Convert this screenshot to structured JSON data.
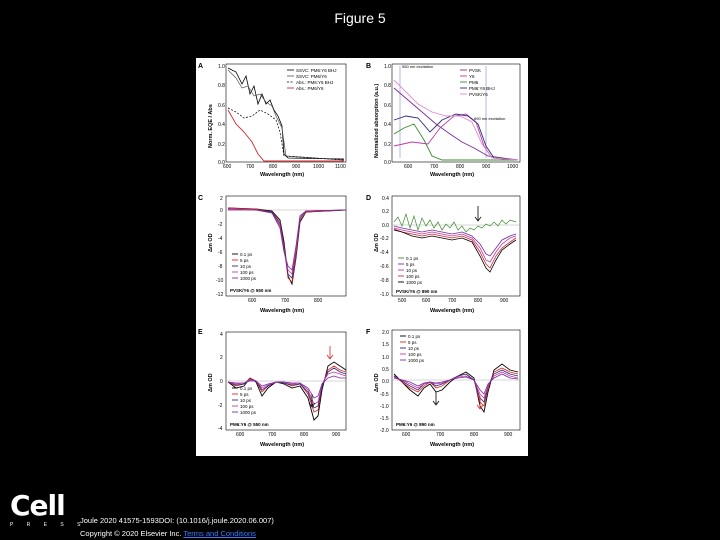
{
  "slide": {
    "title": "Figure 5"
  },
  "footer": {
    "logo_word": "Cell",
    "logo_sub": "P R E S S",
    "citation": "Joule 2020 41575-1593DOI: (10.1016/j.joule.2020.06.007)",
    "copyright": "Copyright © 2020 Elsevier Inc.",
    "terms_link": "Terms and Conditions"
  },
  "colors": {
    "black": "#000000",
    "red": "#d6262a",
    "purple": "#7b2b9e",
    "magenta": "#c03aa6",
    "navy": "#2d2a7a",
    "green": "#3d8b2f",
    "pink": "#e08ad0"
  },
  "panels": {
    "A": {
      "letter": "A",
      "xlabel": "Wavelength (nm)",
      "ylabel": "Norm. EQE / Abs",
      "xticks": [
        "600",
        "700",
        "800",
        "900",
        "1000",
        "1100"
      ],
      "yticks": [
        "1.0",
        "0.8",
        "0.6",
        "0.4",
        "0.2",
        "0.0"
      ],
      "legend": [
        "SSVC: PM6:Y6 BHJ",
        "SSVC: PM6/Y6",
        "Abs.: PM6:Y6 BHJ",
        "Abs.: PM6/Y6"
      ]
    },
    "B": {
      "letter": "B",
      "xlabel": "Wavelength (nm)",
      "ylabel": "Normalized absorption (a.u.)",
      "xticks": [
        "600",
        "700",
        "800",
        "900",
        "1000"
      ],
      "yticks": [
        "1.0",
        "0.8",
        "0.6",
        "0.4",
        "0.2",
        "0.0"
      ],
      "legend": [
        "PVSK",
        "Y6",
        "PM6",
        "PM6:Y6 BHJ",
        "PVSK/Y6"
      ],
      "note1": "550 nm excitation",
      "note2": "890 nm excitation"
    },
    "C": {
      "letter": "C",
      "xlabel": "Wavelength (nm)",
      "ylabel": "Δm OD",
      "xticks": [
        "600",
        "700",
        "800"
      ],
      "yticks": [
        "2",
        "0",
        "-2",
        "-4",
        "-6",
        "-8",
        "-10",
        "-12"
      ],
      "legend": [
        "0.1 ps",
        "5 ps",
        "10 ps",
        "100 ps",
        "1000 ps"
      ],
      "caption": "PVSK/Y6 @ 550 nm"
    },
    "D": {
      "letter": "D",
      "xlabel": "Wavelength (nm)",
      "ylabel": "Δm OD",
      "xticks": [
        "500",
        "600",
        "700",
        "800",
        "900"
      ],
      "yticks": [
        "0.4",
        "0.2",
        "0.0",
        "-0.2",
        "-0.4",
        "-0.6",
        "-0.8",
        "-1.0"
      ],
      "legend": [
        "0.1 ps",
        "5 ps",
        "10 ps",
        "100 ps",
        "1000 ps"
      ],
      "caption": "PVSK/Y6 @ 890 nm"
    },
    "E": {
      "letter": "E",
      "xlabel": "Wavelength (nm)",
      "ylabel": "Δm OD",
      "xticks": [
        "600",
        "700",
        "800",
        "900"
      ],
      "yticks": [
        "4",
        "2",
        "0",
        "-2",
        "-4"
      ],
      "legend": [
        "0.1 ps",
        "5 ps",
        "10 ps",
        "100 ps",
        "1000 ps"
      ],
      "caption": "PM6:Y6 @ 550 nm"
    },
    "F": {
      "letter": "F",
      "xlabel": "Wavelength (nm)",
      "ylabel": "Δm OD",
      "xticks": [
        "600",
        "700",
        "800",
        "900"
      ],
      "yticks": [
        "2.0",
        "1.5",
        "1.0",
        "0.5",
        "0.0",
        "-0.5",
        "-1.0",
        "-1.5",
        "-2.0"
      ],
      "legend": [
        "0.1 ps",
        "5 ps",
        "10 ps",
        "100 ps",
        "1000 ps"
      ],
      "caption": "PM6:Y6 @ 890 nm"
    }
  }
}
